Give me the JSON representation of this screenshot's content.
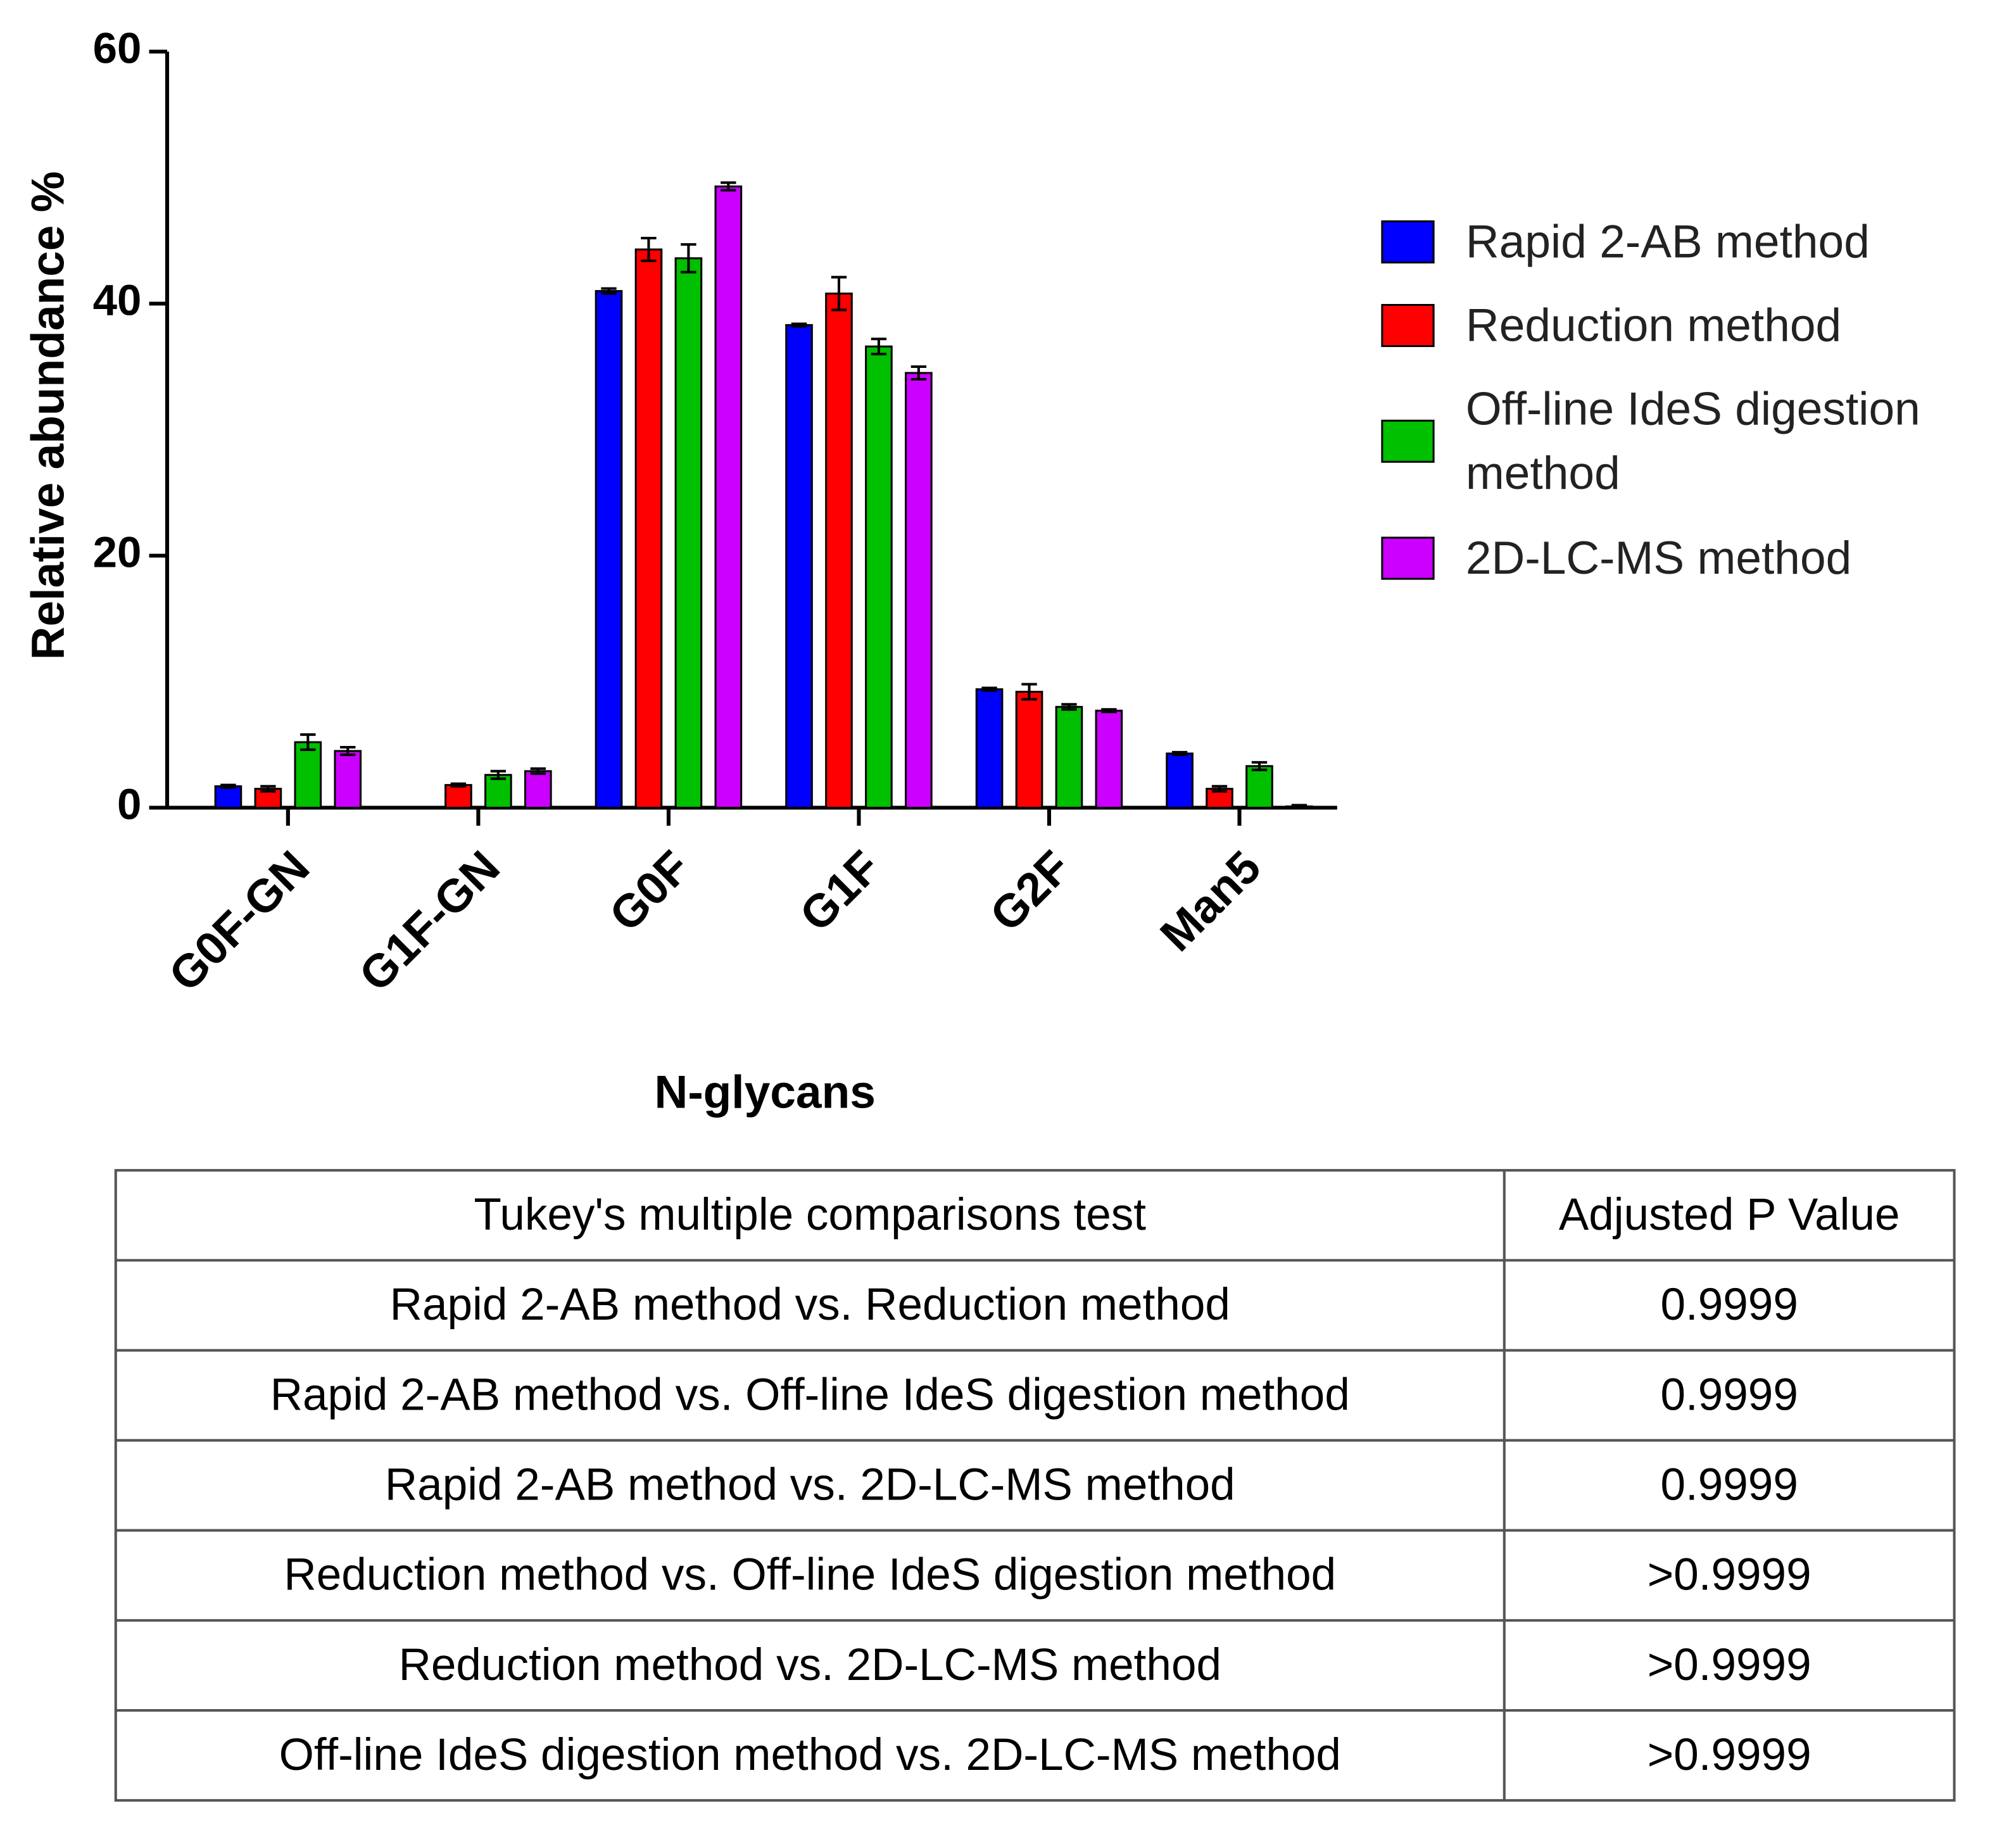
{
  "chart_data": {
    "type": "bar",
    "y_label": "Relative abundance %",
    "x_label": "N-glycans",
    "categories": [
      "G0F-GN",
      "G1F-GN",
      "G0F",
      "G1F",
      "G2F",
      "Man5"
    ],
    "series": [
      {
        "name": "Rapid 2-AB method",
        "color": "#0000ff",
        "values": [
          1.7,
          0,
          41.0,
          38.3,
          9.4,
          4.3
        ],
        "errors": [
          0.1,
          0,
          0.2,
          0.1,
          0.1,
          0.1
        ]
      },
      {
        "name": "Reduction method",
        "color": "#ff0000",
        "values": [
          1.5,
          1.8,
          44.3,
          40.8,
          9.2,
          1.5
        ],
        "errors": [
          0.2,
          0.1,
          0.9,
          1.3,
          0.6,
          0.2
        ]
      },
      {
        "name": "Off-line IdeS digestion method",
        "color": "#00c000",
        "values": [
          5.2,
          2.6,
          43.6,
          36.6,
          8.0,
          3.3
        ],
        "errors": [
          0.6,
          0.3,
          1.1,
          0.6,
          0.2,
          0.3
        ]
      },
      {
        "name": "2D-LC-MS method",
        "color": "#cc00ff",
        "values": [
          4.5,
          2.9,
          49.3,
          34.5,
          7.7,
          0.1
        ],
        "errors": [
          0.3,
          0.2,
          0.3,
          0.5,
          0.1,
          0.1
        ]
      }
    ],
    "ylim": [
      0,
      60
    ],
    "yticks": [
      0,
      20,
      40,
      60
    ],
    "legend": "right"
  },
  "table": {
    "header": [
      "Tukey's multiple comparisons test",
      "Adjusted P Value"
    ],
    "rows": [
      [
        "Rapid 2-AB method vs. Reduction method",
        "0.9999"
      ],
      [
        "Rapid 2-AB method vs. Off-line IdeS digestion method",
        "0.9999"
      ],
      [
        "Rapid 2-AB method vs. 2D-LC-MS method",
        "0.9999"
      ],
      [
        "Reduction method vs. Off-line IdeS digestion method",
        ">0.9999"
      ],
      [
        "Reduction method vs. 2D-LC-MS method",
        ">0.9999"
      ],
      [
        "Off-line IdeS digestion method vs. 2D-LC-MS method",
        ">0.9999"
      ]
    ]
  }
}
